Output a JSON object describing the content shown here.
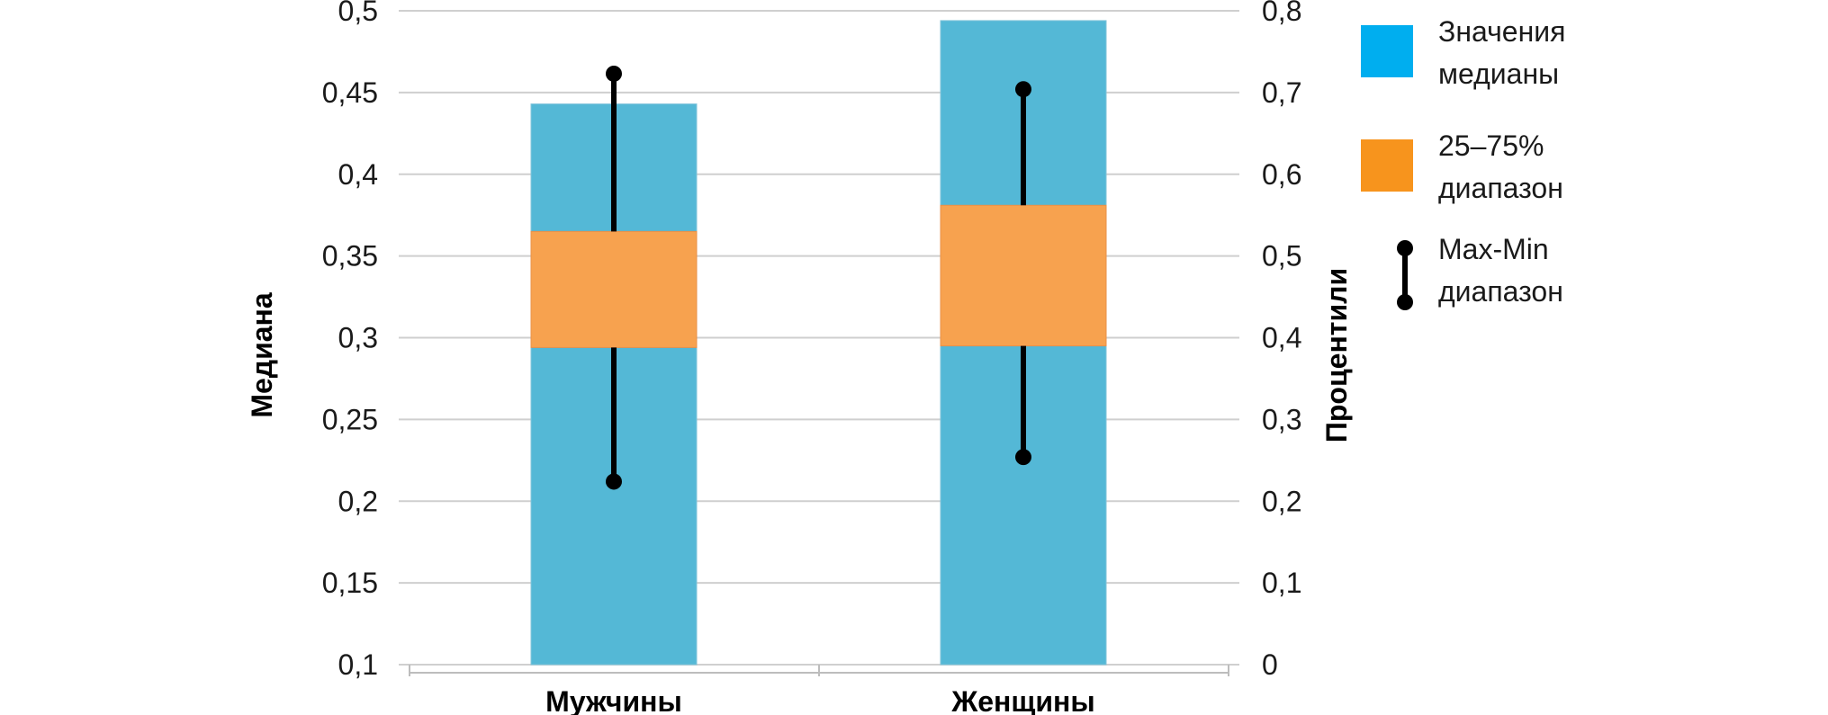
{
  "chart_data": {
    "type": "bar",
    "categories": [
      "Мужчины",
      "Женщины"
    ],
    "y_left": {
      "label": "Медиана",
      "min": 0.1,
      "max": 0.5,
      "ticks": [
        "0,1",
        "0,15",
        "0,2",
        "0,25",
        "0,3",
        "0,35",
        "0,4",
        "0,45",
        "0,5"
      ]
    },
    "y_right": {
      "label": "Процентили",
      "min": 0,
      "max": 0.8,
      "ticks": [
        "0",
        "0,1",
        "0,2",
        "0,3",
        "0,4",
        "0,5",
        "0,6",
        "0,7",
        "0,8"
      ]
    },
    "series": [
      {
        "name": "Значения медианы",
        "axis": "left",
        "color": "#54b8d6",
        "values": [
          0.443,
          0.494
        ]
      },
      {
        "name": "25–75% диапазон",
        "axis": "left",
        "color": "#f7a24f",
        "low": [
          0.294,
          0.295
        ],
        "high": [
          0.365,
          0.381
        ]
      },
      {
        "name": "Max-Min диапазон",
        "axis": "right",
        "color": "#000000",
        "min": [
          0.224,
          0.254
        ],
        "max": [
          0.723,
          0.704
        ]
      }
    ],
    "legend": {
      "placement": "right",
      "items": [
        {
          "lines": [
            "Значения",
            "медианы"
          ],
          "swatch": "#00aeef"
        },
        {
          "lines": [
            "25–75%",
            "диапазон"
          ],
          "swatch": "#f7941d"
        },
        {
          "lines": [
            "Max-Min",
            "диапазон"
          ],
          "swatch": "whisker"
        }
      ]
    },
    "grid": true
  }
}
